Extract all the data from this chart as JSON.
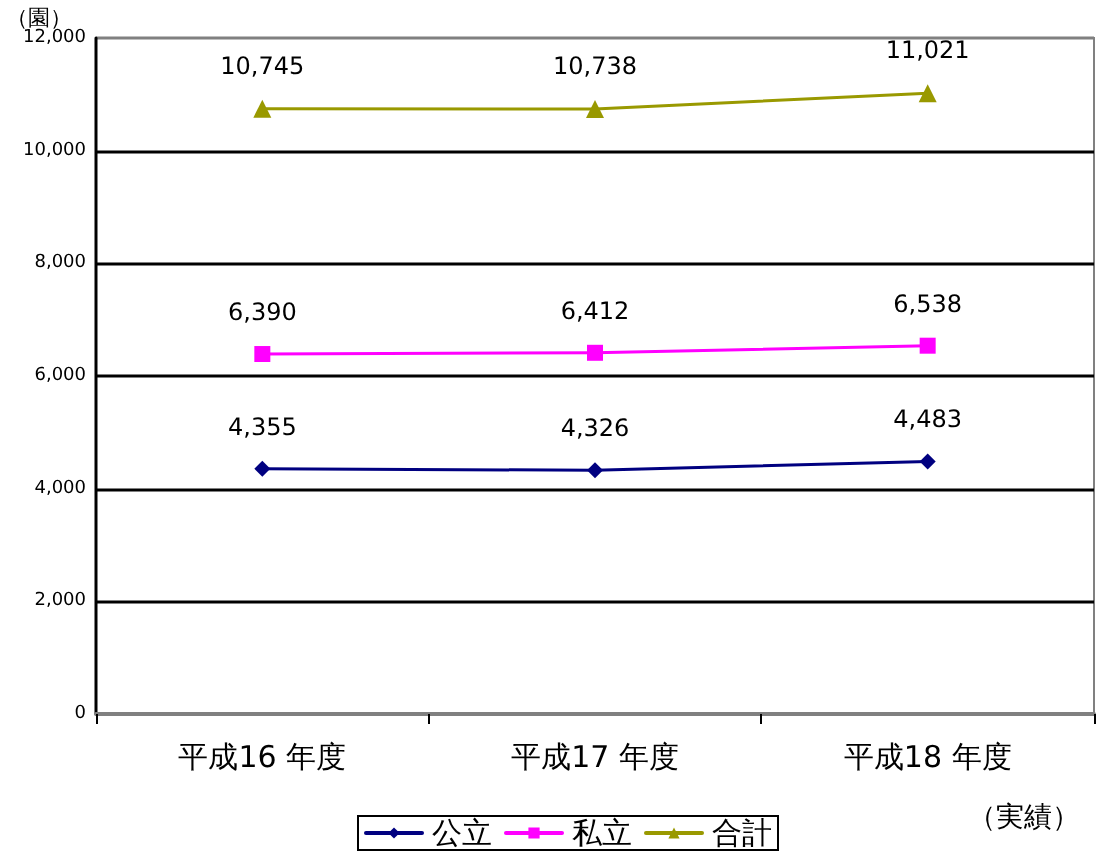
{
  "chart_data": {
    "type": "line",
    "ylabel": "（園）",
    "categories": [
      "平成16 年度",
      "平成17 年度",
      "平成18 年度"
    ],
    "series": [
      {
        "name": "公立",
        "color": "#000080",
        "marker": "diamond",
        "values": [
          4355,
          4326,
          4483
        ],
        "value_labels": [
          "4,355",
          "4,326",
          "4,483"
        ]
      },
      {
        "name": "私立",
        "color": "#ff00ff",
        "marker": "square",
        "values": [
          6390,
          6412,
          6538
        ],
        "value_labels": [
          "6,390",
          "6,412",
          "6,538"
        ]
      },
      {
        "name": "合計",
        "color": "#999900",
        "marker": "triangle",
        "values": [
          10745,
          10738,
          11021
        ],
        "value_labels": [
          "10,745",
          "10,738",
          "11,021"
        ]
      }
    ],
    "ylim": [
      0,
      12000
    ],
    "yticks": [
      0,
      {
        "value": 2000,
        "label": "2,000"
      },
      {
        "value": 4000,
        "label": "4,000"
      },
      {
        "value": 6000,
        "label": "6,000"
      },
      {
        "value": 8000,
        "label": "8,000"
      },
      {
        "value": 10000,
        "label": "10,000"
      },
      {
        "value": 12000,
        "label": "12,000"
      }
    ],
    "grid": "y",
    "legend": "bottom",
    "annotations": [
      "（実績）"
    ]
  }
}
